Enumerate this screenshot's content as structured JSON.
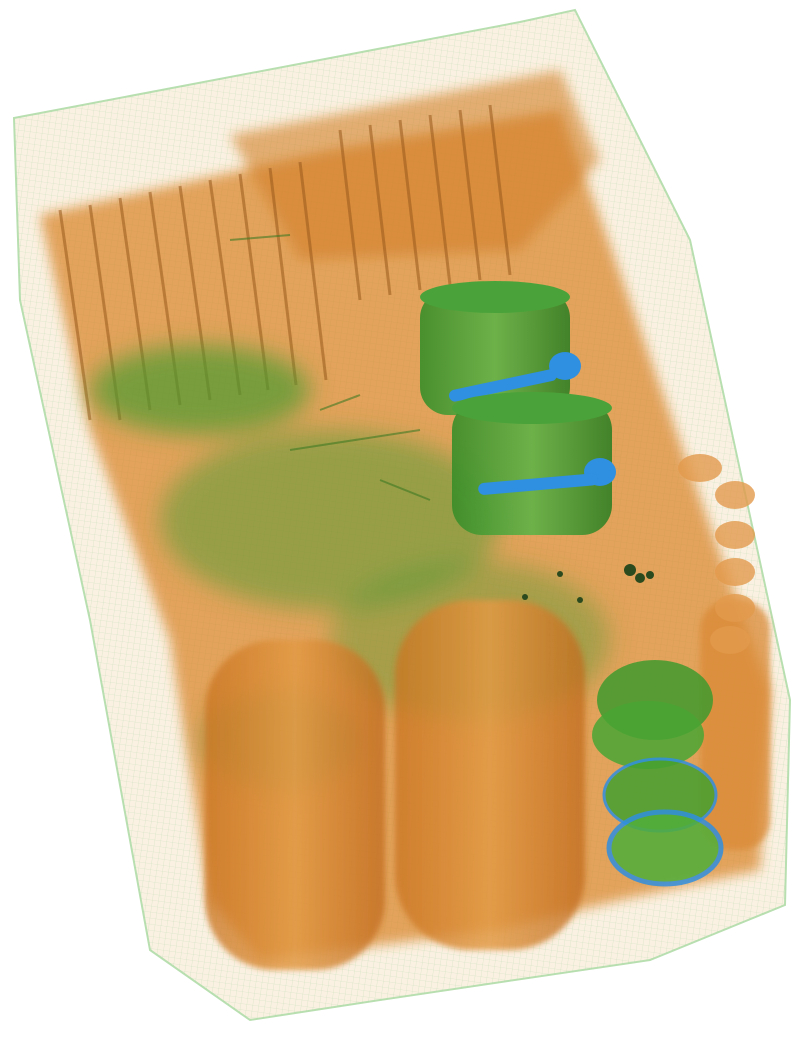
{
  "image": {
    "kind": "3D X-ray volume rendering of a packed container",
    "palette": {
      "background": "#ffffff",
      "organic": "#d9852a",
      "organic_dark": "#b8651a",
      "inorganic": "#3f9a2e",
      "inorganic_light": "#7bc25a",
      "metal": "#2f8fe0",
      "shell_edge": "#8fcf8a"
    }
  }
}
